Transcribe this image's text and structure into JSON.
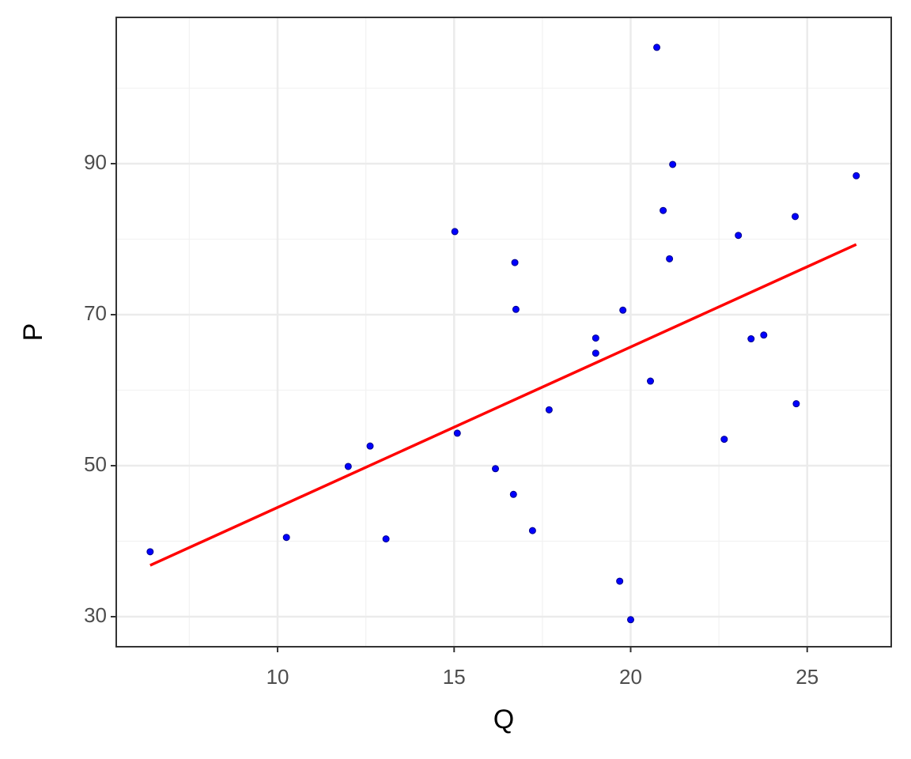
{
  "chart_data": {
    "type": "scatter",
    "x_label": "Q",
    "y_label": "P",
    "xlim": [
      5.43,
      27.38
    ],
    "ylim": [
      26.02,
      109.37
    ],
    "xticks": [
      10,
      15,
      20,
      25
    ],
    "yticks": [
      30,
      50,
      70,
      90
    ],
    "minor_xticks": [
      7.5,
      12.5,
      17.5,
      22.5
    ],
    "minor_yticks": [
      40,
      60,
      80,
      100
    ],
    "grid": true,
    "points": {
      "color": "#0000ff",
      "x": [
        6.39,
        10.25,
        12.0,
        12.62,
        13.07,
        15.02,
        15.09,
        16.17,
        16.68,
        16.72,
        16.75,
        17.22,
        17.69,
        19.01,
        19.01,
        19.69,
        19.78,
        20.0,
        20.56,
        20.74,
        20.92,
        21.1,
        21.19,
        22.65,
        23.05,
        23.41,
        23.77,
        24.66,
        24.69,
        26.39
      ],
      "values": [
        38.6,
        40.5,
        49.9,
        52.6,
        40.3,
        81.0,
        54.3,
        49.6,
        46.2,
        76.9,
        70.7,
        41.4,
        57.4,
        66.9,
        64.9,
        34.7,
        70.6,
        29.6,
        61.2,
        105.4,
        83.8,
        77.4,
        89.9,
        53.5,
        80.5,
        66.8,
        67.3,
        83.0,
        58.2,
        88.4
      ]
    },
    "fit": {
      "color": "#ff0000",
      "x": [
        6.39,
        26.39
      ],
      "values": [
        36.8,
        79.3
      ]
    }
  }
}
